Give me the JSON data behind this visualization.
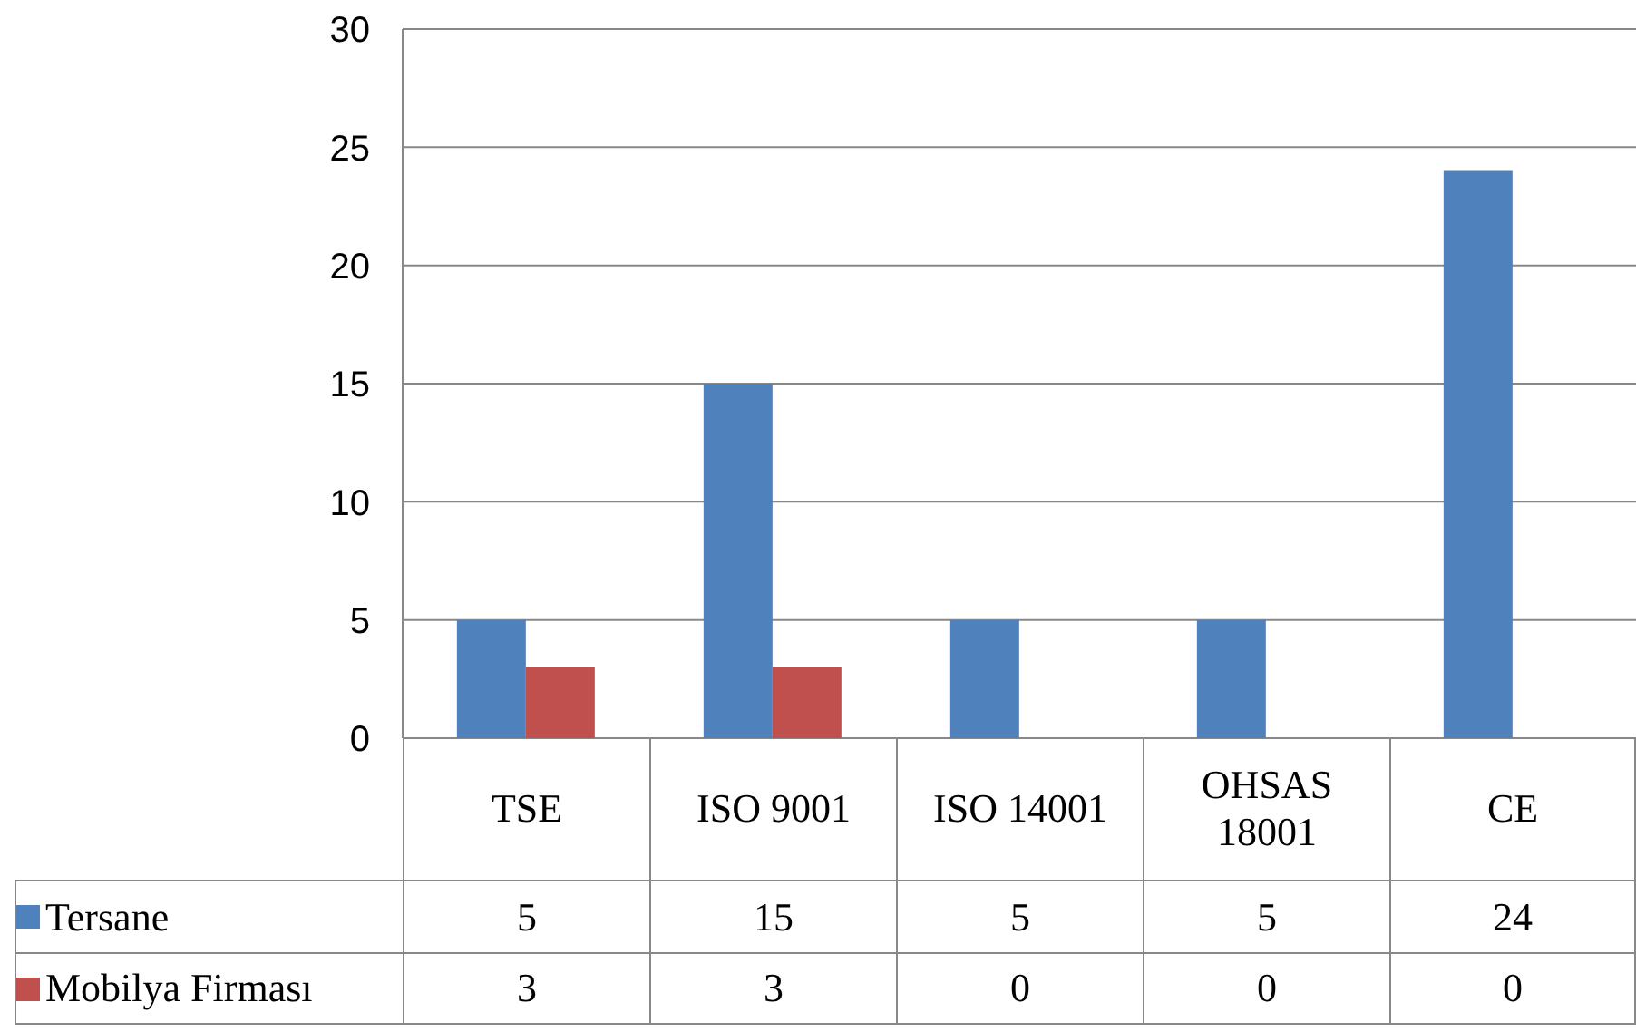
{
  "chart_data": {
    "type": "bar",
    "categories": [
      "TSE",
      "ISO 9001",
      "ISO 14001",
      "OHSAS 18001",
      "CE"
    ],
    "series": [
      {
        "name": "Tersane",
        "color": "#4f81bd",
        "values": [
          5,
          15,
          5,
          5,
          24
        ]
      },
      {
        "name": "Mobilya Firması",
        "color": "#c0504d",
        "values": [
          3,
          3,
          0,
          0,
          0
        ]
      }
    ],
    "ylim": [
      0,
      30
    ],
    "yticks": [
      0,
      5,
      10,
      15,
      20,
      25,
      30
    ],
    "grid": "y",
    "legend": "left",
    "data_labels": true
  }
}
